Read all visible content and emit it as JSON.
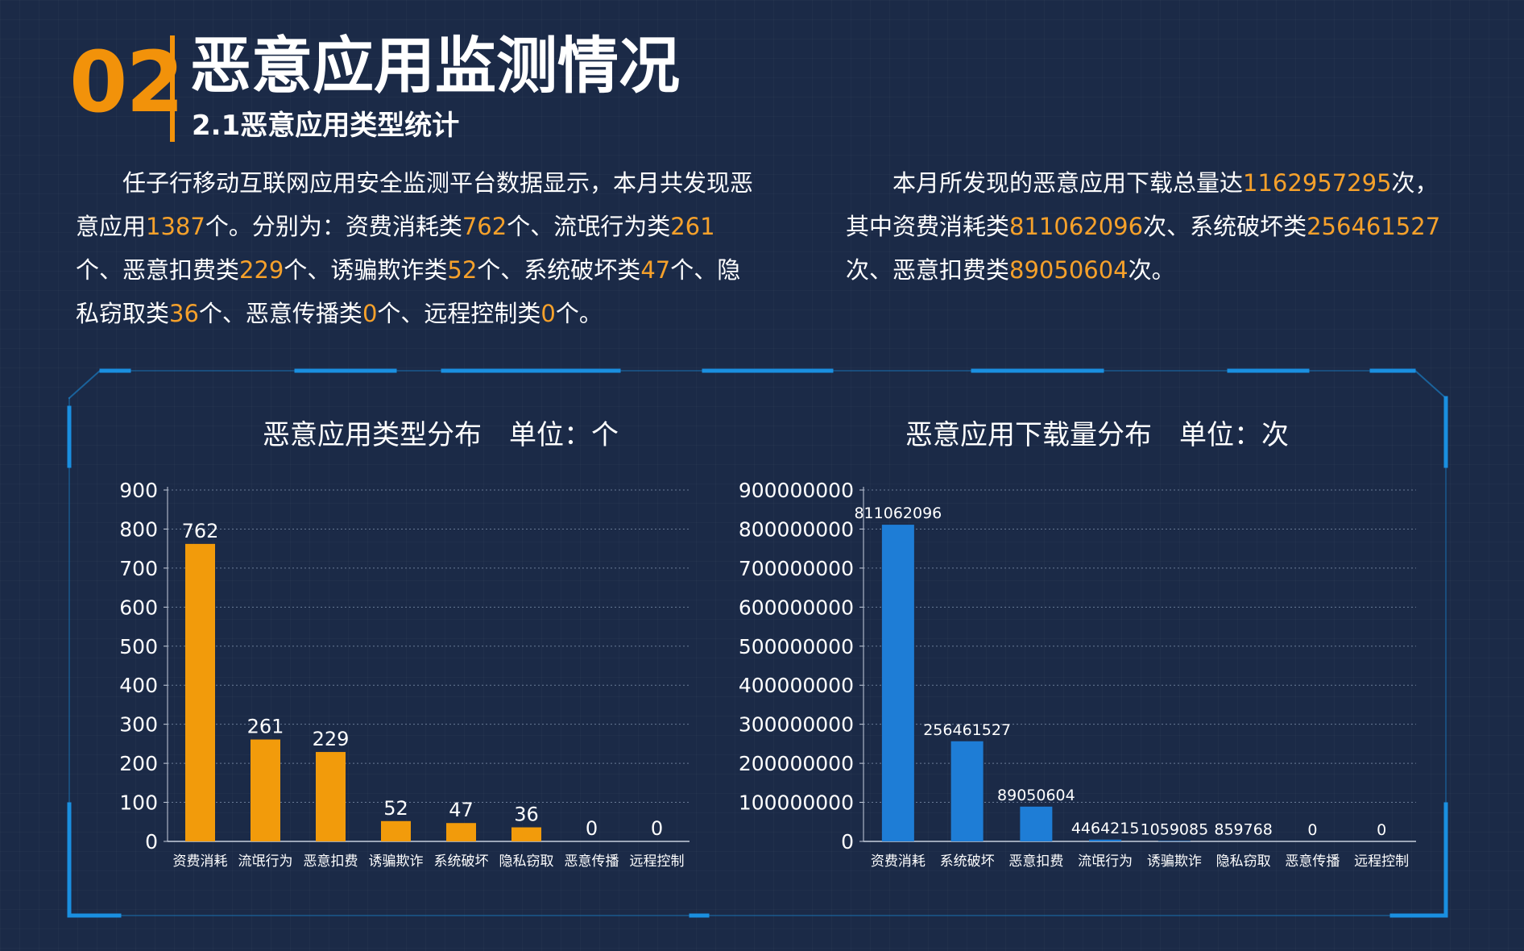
{
  "header": {
    "section_number": "02",
    "title": "恶意应用监测情况",
    "subtitle": "2.1恶意应用类型统计"
  },
  "left_paragraph": {
    "segments": [
      {
        "text": "　　任子行移动互联网应用安全监测平台数据显示，本月共发现恶意应用",
        "highlight": false
      },
      {
        "text": "1387",
        "highlight": true
      },
      {
        "text": "个。分别为：资费消耗类",
        "highlight": false
      },
      {
        "text": "762",
        "highlight": true
      },
      {
        "text": "个、流氓行为类",
        "highlight": false
      },
      {
        "text": "261",
        "highlight": true
      },
      {
        "text": "个、恶意扣费类",
        "highlight": false
      },
      {
        "text": "229",
        "highlight": true
      },
      {
        "text": "个、诱骗欺诈类",
        "highlight": false
      },
      {
        "text": "52",
        "highlight": true
      },
      {
        "text": "个、系统破坏类",
        "highlight": false
      },
      {
        "text": "47",
        "highlight": true
      },
      {
        "text": "个、隐私窃取类",
        "highlight": false
      },
      {
        "text": "36",
        "highlight": true
      },
      {
        "text": "个、恶意传播类",
        "highlight": false
      },
      {
        "text": "0",
        "highlight": true
      },
      {
        "text": "个、远程控制类",
        "highlight": false
      },
      {
        "text": "0",
        "highlight": true
      },
      {
        "text": "个。",
        "highlight": false
      }
    ]
  },
  "right_paragraph": {
    "segments": [
      {
        "text": "　　本月所发现的恶意应用下载总量达",
        "highlight": false
      },
      {
        "text": "1162957295",
        "highlight": true
      },
      {
        "text": "次，其中资费消耗类",
        "highlight": false
      },
      {
        "text": "811062096",
        "highlight": true
      },
      {
        "text": "次、系统破坏类",
        "highlight": false
      },
      {
        "text": "256461527",
        "highlight": true
      },
      {
        "text": "次、恶意扣费类",
        "highlight": false
      },
      {
        "text": "89050604",
        "highlight": true
      },
      {
        "text": "次。",
        "highlight": false
      }
    ]
  },
  "colors": {
    "background": "#1b2a47",
    "accent_orange": "#f2920a",
    "highlight_text": "#f6a12b",
    "bar_orange": "#f29b0b",
    "bar_blue": "#1e7dd6",
    "frame_blue": "#1a8fe0"
  },
  "chart_data": [
    {
      "type": "bar",
      "title": "恶意应用类型分布　单位：个",
      "categories": [
        "资费消耗",
        "流氓行为",
        "恶意扣费",
        "诱骗欺诈",
        "系统破坏",
        "隐私窃取",
        "恶意传播",
        "远程控制"
      ],
      "values": [
        762,
        261,
        229,
        52,
        47,
        36,
        0,
        0
      ],
      "data_labels": [
        "762",
        "261",
        "229",
        "52",
        "47",
        "36",
        "0",
        "0"
      ],
      "yticks": [
        "0",
        "100",
        "200",
        "300",
        "400",
        "500",
        "600",
        "700",
        "800",
        "900"
      ],
      "ylim": [
        0,
        900
      ],
      "grid": true,
      "xlabel": "",
      "ylabel": ""
    },
    {
      "type": "bar",
      "title": "恶意应用下载量分布　单位：次",
      "categories": [
        "资费消耗",
        "系统破坏",
        "恶意扣费",
        "流氓行为",
        "诱骗欺诈",
        "隐私窃取",
        "恶意传播",
        "远程控制"
      ],
      "values": [
        811062096,
        256461527,
        89050604,
        4464215,
        1059085,
        859768,
        0,
        0
      ],
      "data_labels": [
        "811062096",
        "256461527",
        "89050604",
        "4464215",
        "1059085",
        "859768",
        "0",
        "0"
      ],
      "yticks": [
        "0",
        "100000000",
        "200000000",
        "300000000",
        "400000000",
        "500000000",
        "600000000",
        "700000000",
        "800000000",
        "900000000"
      ],
      "ylim": [
        0,
        900000000
      ],
      "grid": true,
      "xlabel": "",
      "ylabel": ""
    }
  ]
}
